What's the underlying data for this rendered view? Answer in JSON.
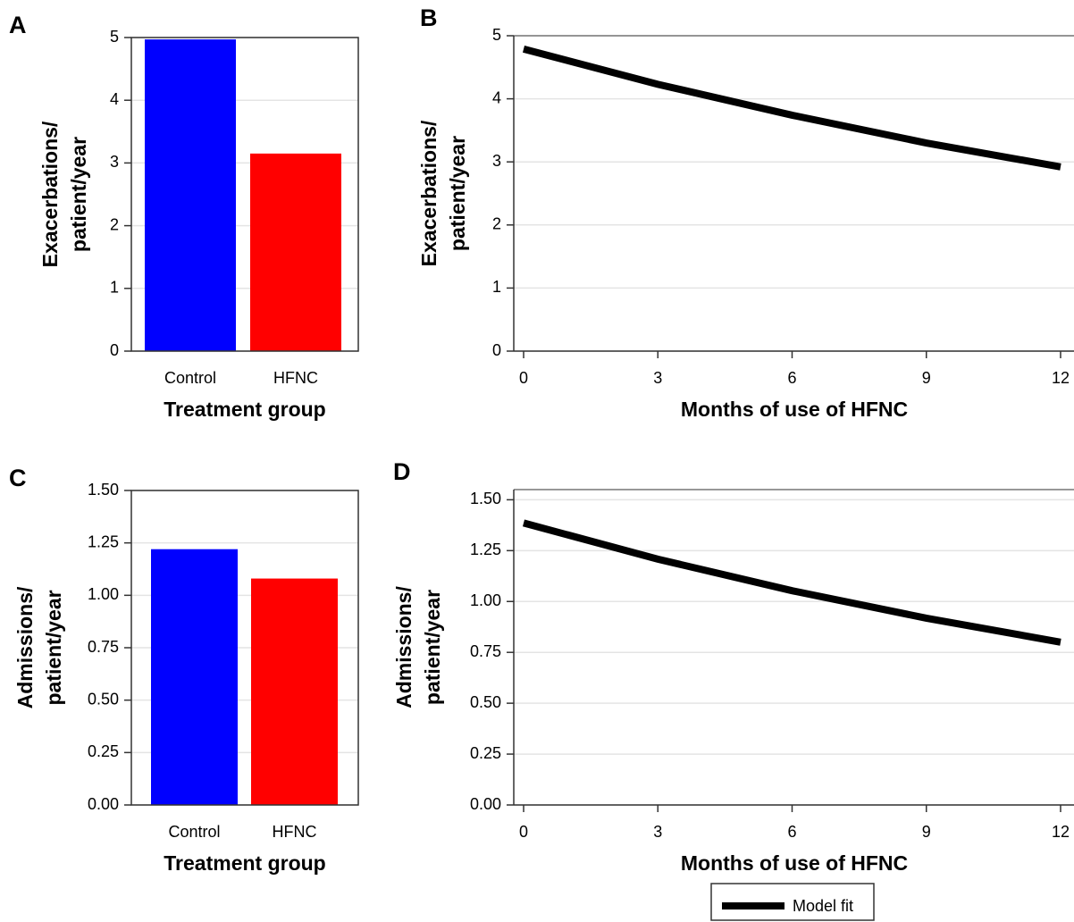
{
  "chart_data": [
    {
      "type": "bar",
      "panel": "A",
      "categories": [
        "Control",
        "HFNC"
      ],
      "values": [
        4.97,
        3.15
      ],
      "colors": [
        "#0000ff",
        "#ff0000"
      ],
      "ylabel": [
        "Exacerbations/",
        "patient/year"
      ],
      "xlabel": "Treatment group",
      "ylim": [
        0,
        5
      ],
      "yticks": [
        0,
        1,
        2,
        3,
        4,
        5
      ],
      "grid": true
    },
    {
      "type": "line",
      "panel": "B",
      "x": [
        0,
        3,
        6,
        9,
        12
      ],
      "series": [
        {
          "color": "#000000",
          "values": [
            4.79,
            4.23,
            3.74,
            3.3,
            2.92
          ]
        }
      ],
      "ylabel": [
        "Exacerbations/",
        "patient/year"
      ],
      "xlabel": "Months of use of HFNC",
      "xlim": [
        -0.22,
        12.3
      ],
      "xticks": [
        0,
        3,
        6,
        9,
        12
      ],
      "ylim": [
        0,
        5
      ],
      "yticks": [
        0,
        1,
        2,
        3,
        4,
        5
      ],
      "grid": true
    },
    {
      "type": "bar",
      "panel": "C",
      "categories": [
        "Control",
        "HFNC"
      ],
      "values": [
        1.22,
        1.08
      ],
      "colors": [
        "#0000ff",
        "#ff0000"
      ],
      "ylabel": [
        "Admissions/",
        "patient/year"
      ],
      "xlabel": "Treatment group",
      "ylim": [
        0,
        1.5
      ],
      "yticks": [
        {
          "value": 0,
          "label": "0.00"
        },
        {
          "value": 0.25,
          "label": "0.25"
        },
        {
          "value": 0.5,
          "label": "0.50"
        },
        {
          "value": 0.75,
          "label": "0.75"
        },
        {
          "value": 1,
          "label": "1.00"
        },
        {
          "value": 1.25,
          "label": "1.25"
        },
        {
          "value": 1.5,
          "label": "1.50"
        }
      ],
      "grid": true
    },
    {
      "type": "line",
      "panel": "D",
      "x": [
        0,
        3,
        6,
        9,
        12
      ],
      "series": [
        {
          "name": "Model fit",
          "color": "#000000",
          "values": [
            1.386,
            1.208,
            1.053,
            0.918,
            0.8
          ]
        }
      ],
      "ylabel": [
        "Admissions/",
        "patient/year"
      ],
      "xlabel": "Months of use of HFNC",
      "xlim": [
        -0.22,
        12.3
      ],
      "xticks": [
        0,
        3,
        6,
        9,
        12
      ],
      "ylim": [
        0,
        1.55
      ],
      "yticks": [
        {
          "value": 0,
          "label": "0.00"
        },
        {
          "value": 0.25,
          "label": "0.25"
        },
        {
          "value": 0.5,
          "label": "0.50"
        },
        {
          "value": 0.75,
          "label": "0.75"
        },
        {
          "value": 1,
          "label": "1.00"
        },
        {
          "value": 1.25,
          "label": "1.25"
        },
        {
          "value": 1.5,
          "label": "1.50"
        }
      ],
      "grid": true,
      "legend": "bottom"
    }
  ]
}
